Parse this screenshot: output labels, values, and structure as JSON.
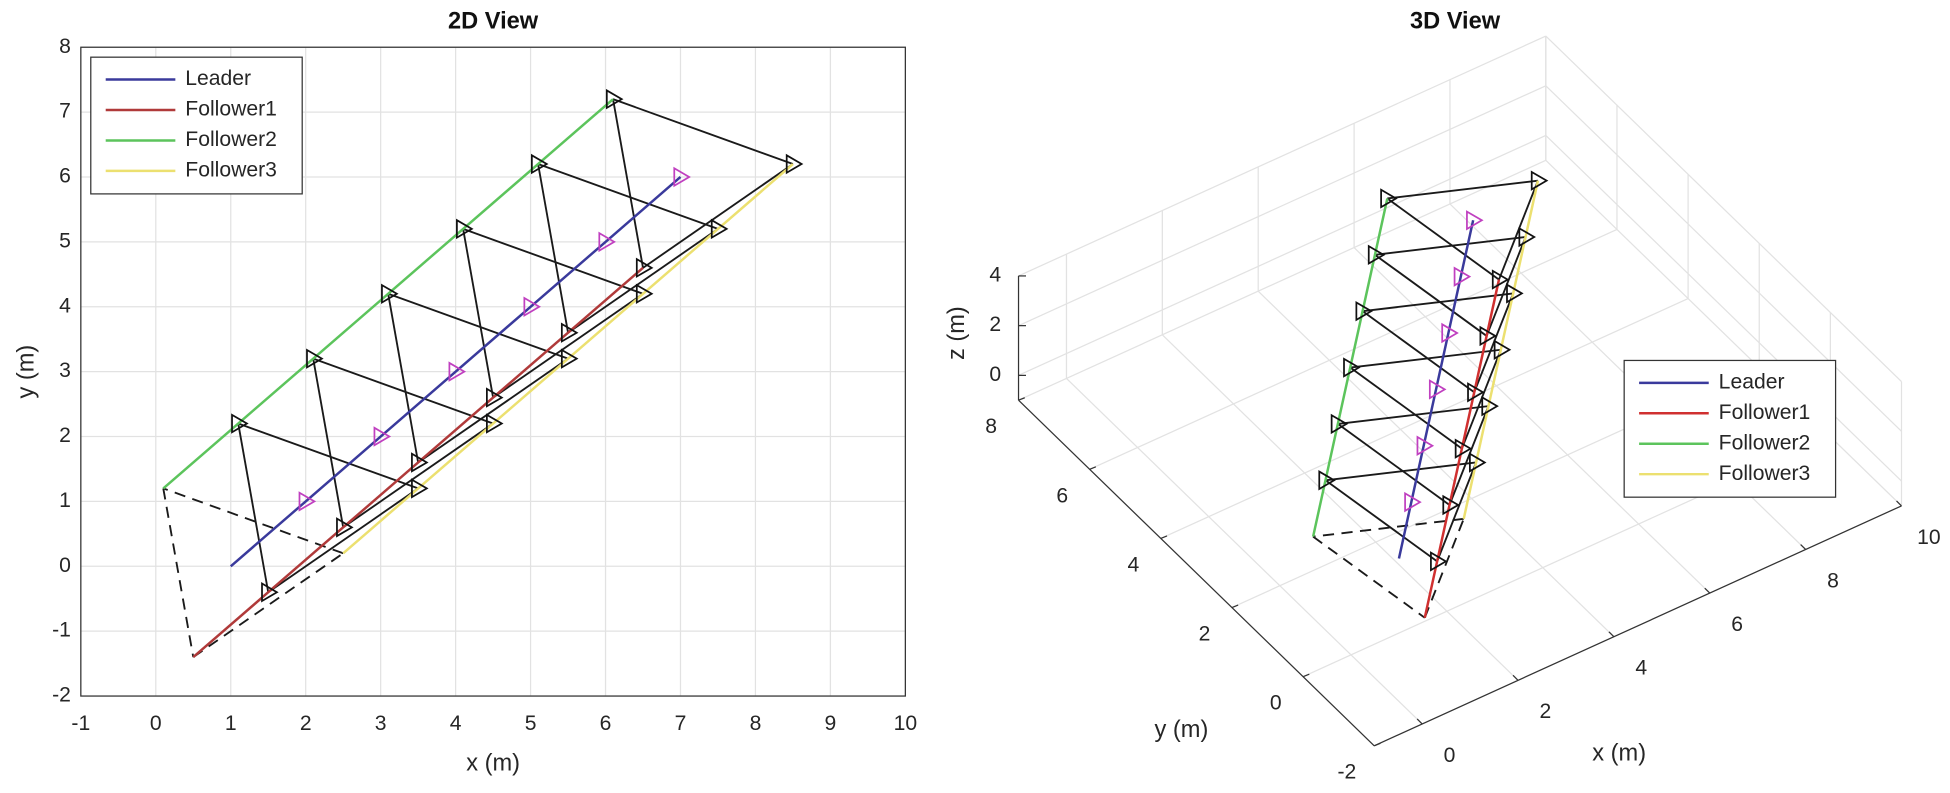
{
  "chart_data": [
    {
      "type": "line",
      "title": "2D View",
      "xlabel": "x (m)",
      "ylabel": "y (m)",
      "xlim": [
        -1,
        10
      ],
      "ylim": [
        -2,
        8
      ],
      "xticks": [
        -1,
        0,
        1,
        2,
        3,
        4,
        5,
        6,
        7,
        8,
        9,
        10
      ],
      "yticks": [
        -2,
        -1,
        0,
        1,
        2,
        3,
        4,
        5,
        6,
        7,
        8
      ],
      "grid": true,
      "legend": "upper left",
      "series": [
        {
          "name": "Leader",
          "color": "#3a3a9c",
          "marker_color": "#c040c0",
          "x": [
            1,
            2,
            3,
            4,
            5,
            6,
            7
          ],
          "y": [
            0,
            1,
            2,
            3,
            4,
            5,
            6
          ]
        },
        {
          "name": "Follower1",
          "color": "#b03a3a",
          "marker_color": "#111111",
          "x": [
            0.5,
            1.5,
            2.5,
            3.5,
            4.5,
            5.5,
            6.5
          ],
          "y": [
            -1.4,
            -0.4,
            0.6,
            1.6,
            2.6,
            3.6,
            4.6
          ]
        },
        {
          "name": "Follower2",
          "color": "#5cc45c",
          "marker_color": "#111111",
          "x": [
            0.1,
            1.1,
            2.1,
            3.1,
            4.1,
            5.1,
            6.1
          ],
          "y": [
            1.2,
            2.2,
            3.2,
            4.2,
            5.2,
            6.2,
            7.2
          ]
        },
        {
          "name": "Follower3",
          "color": "#ece070",
          "marker_color": "#111111",
          "x": [
            2.5,
            3.5,
            4.5,
            5.5,
            6.5,
            7.5,
            8.5
          ],
          "y": [
            0.2,
            1.2,
            2.2,
            3.2,
            4.2,
            5.2,
            6.2
          ]
        }
      ]
    },
    {
      "type": "line3d",
      "title": "3D View",
      "xlabel": "x (m)",
      "ylabel": "y (m)",
      "zlabel": "z (m)",
      "xlim": [
        -1,
        10
      ],
      "ylim": [
        -2,
        8
      ],
      "zlim": [
        -1,
        4
      ],
      "xticks": [
        0,
        2,
        4,
        6,
        8,
        10
      ],
      "yticks": [
        -2,
        0,
        2,
        4,
        6,
        8
      ],
      "zticks": [
        0,
        2,
        4
      ],
      "grid": true,
      "legend": "center right",
      "series": [
        {
          "name": "Leader",
          "color": "#3a3a9c",
          "marker_color": "#c040c0",
          "x": [
            1,
            2,
            3,
            4,
            5,
            6,
            7
          ],
          "y": [
            0,
            1,
            2,
            3,
            4,
            5,
            6
          ],
          "z": [
            2,
            2,
            2,
            2,
            2,
            2,
            2
          ]
        },
        {
          "name": "Follower1",
          "color": "#d03030",
          "marker_color": "#111111",
          "x": [
            0.5,
            1.5,
            2.5,
            3.5,
            4.5,
            5.5,
            6.5
          ],
          "y": [
            -1.4,
            -0.4,
            0.6,
            1.6,
            2.6,
            3.6,
            4.6
          ],
          "z": [
            2,
            2,
            2,
            2,
            2,
            2,
            2
          ]
        },
        {
          "name": "Follower2",
          "color": "#5cc45c",
          "marker_color": "#111111",
          "x": [
            0.1,
            1.1,
            2.1,
            3.1,
            4.1,
            5.1,
            6.1
          ],
          "y": [
            1.2,
            2.2,
            3.2,
            4.2,
            5.2,
            6.2,
            7.2
          ],
          "z": [
            2,
            2,
            2,
            2,
            2,
            2,
            2
          ]
        },
        {
          "name": "Follower3",
          "color": "#ece070",
          "marker_color": "#111111",
          "x": [
            2.5,
            3.5,
            4.5,
            5.5,
            6.5,
            7.5,
            8.5
          ],
          "y": [
            0.2,
            1.2,
            2.2,
            3.2,
            4.2,
            5.2,
            6.2
          ],
          "z": [
            2,
            2,
            2,
            2,
            2,
            2,
            2
          ]
        }
      ]
    }
  ]
}
